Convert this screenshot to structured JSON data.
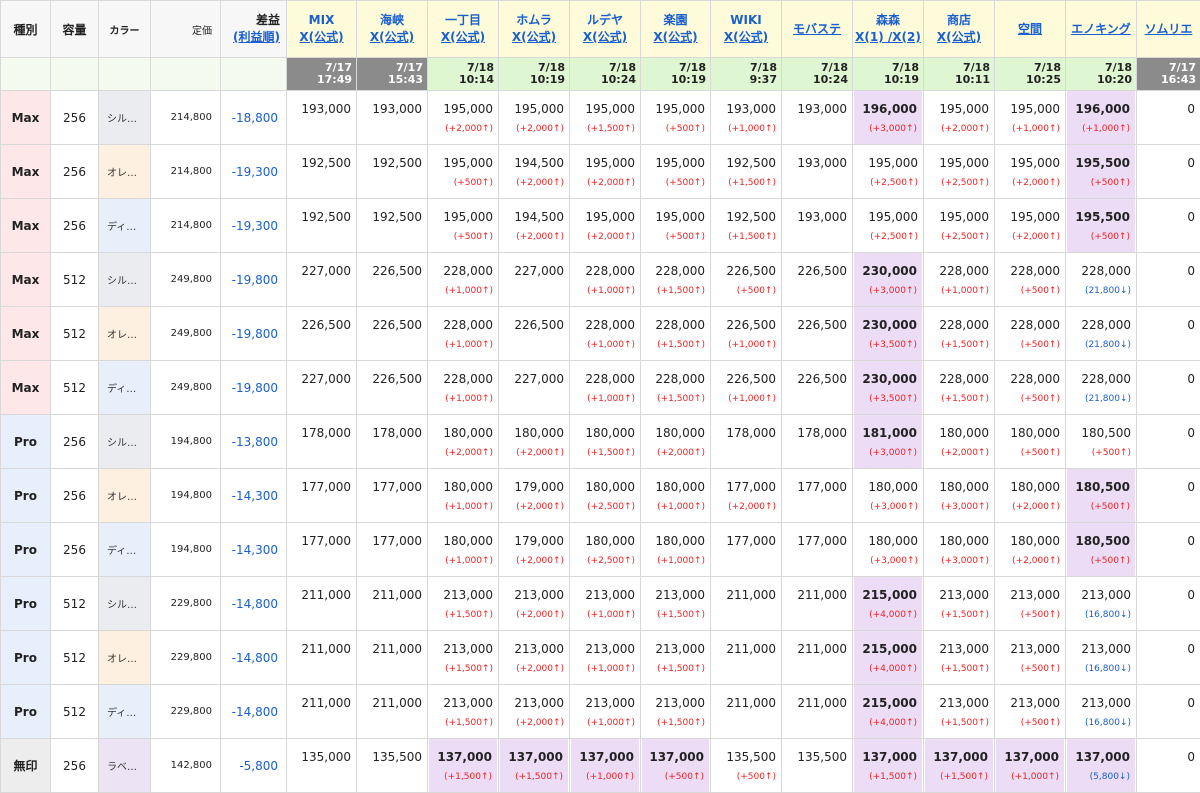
{
  "headers": {
    "type": "種別",
    "capacity": "容量",
    "color": "カラー",
    "price": "定価",
    "diff_line1": "差益",
    "diff_line2": "(利益順)"
  },
  "sites": [
    {
      "line1": "MIX",
      "line2": "X(公式)",
      "date": "7/17",
      "time": "17:49",
      "state": "old"
    },
    {
      "line1": "海峡",
      "line2": "X(公式)",
      "date": "7/17",
      "time": "15:43",
      "state": "old"
    },
    {
      "line1": "一丁目",
      "line2": "X(公式)",
      "date": "7/18",
      "time": "10:14",
      "state": "new"
    },
    {
      "line1": "ホムラ",
      "line2": "X(公式)",
      "date": "7/18",
      "time": "10:19",
      "state": "new"
    },
    {
      "line1": "ルデヤ",
      "line2": "X(公式)",
      "date": "7/18",
      "time": "10:24",
      "state": "new"
    },
    {
      "line1": "楽園",
      "line2": "X(公式)",
      "date": "7/18",
      "time": "10:19",
      "state": "new"
    },
    {
      "line1": "WIKI",
      "line2": "X(公式)",
      "date": "7/18",
      "time": "9:37",
      "state": "new"
    },
    {
      "line1": "モバステ",
      "line2": "",
      "date": "7/18",
      "time": "10:24",
      "state": "new"
    },
    {
      "line1": "森森",
      "line2": "X(1) /X(2)",
      "date": "7/18",
      "time": "10:19",
      "state": "new"
    },
    {
      "line1": "商店",
      "line2": "X(公式)",
      "date": "7/18",
      "time": "10:11",
      "state": "new"
    },
    {
      "line1": "空間",
      "line2": "",
      "date": "7/18",
      "time": "10:25",
      "state": "new"
    },
    {
      "line1": "エノキング",
      "line2": "",
      "date": "7/18",
      "time": "10:20",
      "state": "new"
    },
    {
      "line1": "ソムリエ",
      "line2": "",
      "date": "7/17",
      "time": "16:43",
      "state": "old"
    }
  ],
  "rows": [
    {
      "type": "Max",
      "cap": "256",
      "color": "シル…",
      "colorKind": "silver",
      "price": "214,800",
      "diff": "-18,800",
      "cells": [
        {
          "v": "193,000",
          "d": ""
        },
        {
          "v": "193,000",
          "d": ""
        },
        {
          "v": "195,000",
          "d": "(+2,000↑)"
        },
        {
          "v": "195,000",
          "d": "(+2,000↑)"
        },
        {
          "v": "195,000",
          "d": "(+1,500↑)"
        },
        {
          "v": "195,000",
          "d": "(+500↑)"
        },
        {
          "v": "193,000",
          "d": "(+1,000↑)"
        },
        {
          "v": "193,000",
          "d": ""
        },
        {
          "v": "196,000",
          "d": "(+3,000↑)",
          "hl": true
        },
        {
          "v": "195,000",
          "d": "(+2,000↑)"
        },
        {
          "v": "195,000",
          "d": "(+1,000↑)"
        },
        {
          "v": "196,000",
          "d": "(+1,000↑)",
          "hl": true
        },
        {
          "v": "0",
          "d": ""
        }
      ]
    },
    {
      "type": "Max",
      "cap": "256",
      "color": "オレ…",
      "colorKind": "orange",
      "price": "214,800",
      "diff": "-19,300",
      "cells": [
        {
          "v": "192,500",
          "d": ""
        },
        {
          "v": "192,500",
          "d": ""
        },
        {
          "v": "195,000",
          "d": "(+500↑)"
        },
        {
          "v": "194,500",
          "d": "(+2,000↑)"
        },
        {
          "v": "195,000",
          "d": "(+2,000↑)"
        },
        {
          "v": "195,000",
          "d": "(+500↑)"
        },
        {
          "v": "192,500",
          "d": "(+1,500↑)"
        },
        {
          "v": "193,000",
          "d": ""
        },
        {
          "v": "195,000",
          "d": "(+2,500↑)"
        },
        {
          "v": "195,000",
          "d": "(+2,500↑)"
        },
        {
          "v": "195,000",
          "d": "(+2,000↑)"
        },
        {
          "v": "195,500",
          "d": "(+500↑)",
          "hl": true
        },
        {
          "v": "0",
          "d": ""
        }
      ]
    },
    {
      "type": "Max",
      "cap": "256",
      "color": "ディ…",
      "colorKind": "blue",
      "price": "214,800",
      "diff": "-19,300",
      "cells": [
        {
          "v": "192,500",
          "d": ""
        },
        {
          "v": "192,500",
          "d": ""
        },
        {
          "v": "195,000",
          "d": "(+500↑)"
        },
        {
          "v": "194,500",
          "d": "(+2,000↑)"
        },
        {
          "v": "195,000",
          "d": "(+2,000↑)"
        },
        {
          "v": "195,000",
          "d": "(+500↑)"
        },
        {
          "v": "192,500",
          "d": "(+1,500↑)"
        },
        {
          "v": "193,000",
          "d": ""
        },
        {
          "v": "195,000",
          "d": "(+2,500↑)"
        },
        {
          "v": "195,000",
          "d": "(+2,500↑)"
        },
        {
          "v": "195,000",
          "d": "(+2,000↑)"
        },
        {
          "v": "195,500",
          "d": "(+500↑)",
          "hl": true
        },
        {
          "v": "0",
          "d": ""
        }
      ]
    },
    {
      "type": "Max",
      "cap": "512",
      "color": "シル…",
      "colorKind": "silver",
      "price": "249,800",
      "diff": "-19,800",
      "cells": [
        {
          "v": "227,000",
          "d": ""
        },
        {
          "v": "226,500",
          "d": ""
        },
        {
          "v": "228,000",
          "d": "(+1,000↑)"
        },
        {
          "v": "227,000",
          "d": ""
        },
        {
          "v": "228,000",
          "d": "(+1,000↑)"
        },
        {
          "v": "228,000",
          "d": "(+1,500↑)"
        },
        {
          "v": "226,500",
          "d": "(+500↑)"
        },
        {
          "v": "226,500",
          "d": ""
        },
        {
          "v": "230,000",
          "d": "(+3,000↑)",
          "hl": true
        },
        {
          "v": "228,000",
          "d": "(+1,000↑)"
        },
        {
          "v": "228,000",
          "d": "(+500↑)"
        },
        {
          "v": "228,000",
          "d": "(21,800↓)",
          "down": true
        },
        {
          "v": "0",
          "d": ""
        }
      ]
    },
    {
      "type": "Max",
      "cap": "512",
      "color": "オレ…",
      "colorKind": "orange",
      "price": "249,800",
      "diff": "-19,800",
      "cells": [
        {
          "v": "226,500",
          "d": ""
        },
        {
          "v": "226,500",
          "d": ""
        },
        {
          "v": "228,000",
          "d": "(+1,000↑)"
        },
        {
          "v": "226,500",
          "d": ""
        },
        {
          "v": "228,000",
          "d": "(+1,000↑)"
        },
        {
          "v": "228,000",
          "d": "(+1,500↑)"
        },
        {
          "v": "226,500",
          "d": "(+1,000↑)"
        },
        {
          "v": "226,500",
          "d": ""
        },
        {
          "v": "230,000",
          "d": "(+3,500↑)",
          "hl": true
        },
        {
          "v": "228,000",
          "d": "(+1,500↑)"
        },
        {
          "v": "228,000",
          "d": "(+500↑)"
        },
        {
          "v": "228,000",
          "d": "(21,800↓)",
          "down": true
        },
        {
          "v": "0",
          "d": ""
        }
      ]
    },
    {
      "type": "Max",
      "cap": "512",
      "color": "ディ…",
      "colorKind": "blue",
      "price": "249,800",
      "diff": "-19,800",
      "cells": [
        {
          "v": "227,000",
          "d": ""
        },
        {
          "v": "226,500",
          "d": ""
        },
        {
          "v": "228,000",
          "d": "(+1,000↑)"
        },
        {
          "v": "227,000",
          "d": ""
        },
        {
          "v": "228,000",
          "d": "(+1,000↑)"
        },
        {
          "v": "228,000",
          "d": "(+1,500↑)"
        },
        {
          "v": "226,500",
          "d": "(+1,000↑)"
        },
        {
          "v": "226,500",
          "d": ""
        },
        {
          "v": "230,000",
          "d": "(+3,500↑)",
          "hl": true
        },
        {
          "v": "228,000",
          "d": "(+1,500↑)"
        },
        {
          "v": "228,000",
          "d": "(+500↑)"
        },
        {
          "v": "228,000",
          "d": "(21,800↓)",
          "down": true
        },
        {
          "v": "0",
          "d": ""
        }
      ]
    },
    {
      "type": "Pro",
      "cap": "256",
      "color": "シル…",
      "colorKind": "silver",
      "price": "194,800",
      "diff": "-13,800",
      "cells": [
        {
          "v": "178,000",
          "d": ""
        },
        {
          "v": "178,000",
          "d": ""
        },
        {
          "v": "180,000",
          "d": "(+2,000↑)"
        },
        {
          "v": "180,000",
          "d": "(+2,000↑)"
        },
        {
          "v": "180,000",
          "d": "(+1,500↑)"
        },
        {
          "v": "180,000",
          "d": "(+2,000↑)"
        },
        {
          "v": "178,000",
          "d": ""
        },
        {
          "v": "178,000",
          "d": ""
        },
        {
          "v": "181,000",
          "d": "(+3,000↑)",
          "hl": true
        },
        {
          "v": "180,000",
          "d": "(+2,000↑)"
        },
        {
          "v": "180,000",
          "d": "(+500↑)"
        },
        {
          "v": "180,500",
          "d": "(+500↑)"
        },
        {
          "v": "0",
          "d": ""
        }
      ]
    },
    {
      "type": "Pro",
      "cap": "256",
      "color": "オレ…",
      "colorKind": "orange",
      "price": "194,800",
      "diff": "-14,300",
      "cells": [
        {
          "v": "177,000",
          "d": ""
        },
        {
          "v": "177,000",
          "d": ""
        },
        {
          "v": "180,000",
          "d": "(+1,000↑)"
        },
        {
          "v": "179,000",
          "d": "(+2,000↑)"
        },
        {
          "v": "180,000",
          "d": "(+2,500↑)"
        },
        {
          "v": "180,000",
          "d": "(+1,000↑)"
        },
        {
          "v": "177,000",
          "d": "(+2,000↑)"
        },
        {
          "v": "177,000",
          "d": ""
        },
        {
          "v": "180,000",
          "d": "(+3,000↑)"
        },
        {
          "v": "180,000",
          "d": "(+3,000↑)"
        },
        {
          "v": "180,000",
          "d": "(+2,000↑)"
        },
        {
          "v": "180,500",
          "d": "(+500↑)",
          "hl": true
        },
        {
          "v": "0",
          "d": ""
        }
      ]
    },
    {
      "type": "Pro",
      "cap": "256",
      "color": "ディ…",
      "colorKind": "blue",
      "price": "194,800",
      "diff": "-14,300",
      "cells": [
        {
          "v": "177,000",
          "d": ""
        },
        {
          "v": "177,000",
          "d": ""
        },
        {
          "v": "180,000",
          "d": "(+1,000↑)"
        },
        {
          "v": "179,000",
          "d": "(+2,000↑)"
        },
        {
          "v": "180,000",
          "d": "(+2,500↑)"
        },
        {
          "v": "180,000",
          "d": "(+1,000↑)"
        },
        {
          "v": "177,000",
          "d": ""
        },
        {
          "v": "177,000",
          "d": ""
        },
        {
          "v": "180,000",
          "d": "(+3,000↑)"
        },
        {
          "v": "180,000",
          "d": "(+3,000↑)"
        },
        {
          "v": "180,000",
          "d": "(+2,000↑)"
        },
        {
          "v": "180,500",
          "d": "(+500↑)",
          "hl": true
        },
        {
          "v": "0",
          "d": ""
        }
      ]
    },
    {
      "type": "Pro",
      "cap": "512",
      "color": "シル…",
      "colorKind": "silver",
      "price": "229,800",
      "diff": "-14,800",
      "cells": [
        {
          "v": "211,000",
          "d": ""
        },
        {
          "v": "211,000",
          "d": ""
        },
        {
          "v": "213,000",
          "d": "(+1,500↑)"
        },
        {
          "v": "213,000",
          "d": "(+2,000↑)"
        },
        {
          "v": "213,000",
          "d": "(+1,000↑)"
        },
        {
          "v": "213,000",
          "d": "(+1,500↑)"
        },
        {
          "v": "211,000",
          "d": ""
        },
        {
          "v": "211,000",
          "d": ""
        },
        {
          "v": "215,000",
          "d": "(+4,000↑)",
          "hl": true
        },
        {
          "v": "213,000",
          "d": "(+1,500↑)"
        },
        {
          "v": "213,000",
          "d": "(+500↑)"
        },
        {
          "v": "213,000",
          "d": "(16,800↓)",
          "down": true
        },
        {
          "v": "0",
          "d": ""
        }
      ]
    },
    {
      "type": "Pro",
      "cap": "512",
      "color": "オレ…",
      "colorKind": "orange",
      "price": "229,800",
      "diff": "-14,800",
      "cells": [
        {
          "v": "211,000",
          "d": ""
        },
        {
          "v": "211,000",
          "d": ""
        },
        {
          "v": "213,000",
          "d": "(+1,500↑)"
        },
        {
          "v": "213,000",
          "d": "(+2,000↑)"
        },
        {
          "v": "213,000",
          "d": "(+1,000↑)"
        },
        {
          "v": "213,000",
          "d": "(+1,500↑)"
        },
        {
          "v": "211,000",
          "d": ""
        },
        {
          "v": "211,000",
          "d": ""
        },
        {
          "v": "215,000",
          "d": "(+4,000↑)",
          "hl": true
        },
        {
          "v": "213,000",
          "d": "(+1,500↑)"
        },
        {
          "v": "213,000",
          "d": "(+500↑)"
        },
        {
          "v": "213,000",
          "d": "(16,800↓)",
          "down": true
        },
        {
          "v": "0",
          "d": ""
        }
      ]
    },
    {
      "type": "Pro",
      "cap": "512",
      "color": "ディ…",
      "colorKind": "blue",
      "price": "229,800",
      "diff": "-14,800",
      "cells": [
        {
          "v": "211,000",
          "d": ""
        },
        {
          "v": "211,000",
          "d": ""
        },
        {
          "v": "213,000",
          "d": "(+1,500↑)"
        },
        {
          "v": "213,000",
          "d": "(+2,000↑)"
        },
        {
          "v": "213,000",
          "d": "(+1,000↑)"
        },
        {
          "v": "213,000",
          "d": "(+1,500↑)"
        },
        {
          "v": "211,000",
          "d": ""
        },
        {
          "v": "211,000",
          "d": ""
        },
        {
          "v": "215,000",
          "d": "(+4,000↑)",
          "hl": true
        },
        {
          "v": "213,000",
          "d": "(+1,500↑)"
        },
        {
          "v": "213,000",
          "d": "(+500↑)"
        },
        {
          "v": "213,000",
          "d": "(16,800↓)",
          "down": true
        },
        {
          "v": "0",
          "d": ""
        }
      ]
    },
    {
      "type": "無印",
      "cap": "256",
      "color": "ラベ…",
      "colorKind": "lav",
      "price": "142,800",
      "diff": "-5,800",
      "cells": [
        {
          "v": "135,000",
          "d": ""
        },
        {
          "v": "135,500",
          "d": ""
        },
        {
          "v": "137,000",
          "d": "(+1,500↑)",
          "hl": true
        },
        {
          "v": "137,000",
          "d": "(+1,500↑)",
          "hl": true
        },
        {
          "v": "137,000",
          "d": "(+1,000↑)",
          "hl": true
        },
        {
          "v": "137,000",
          "d": "(+500↑)",
          "hl": true
        },
        {
          "v": "135,500",
          "d": "(+500↑)"
        },
        {
          "v": "135,500",
          "d": ""
        },
        {
          "v": "137,000",
          "d": "(+1,500↑)",
          "hl": true
        },
        {
          "v": "137,000",
          "d": "(+1,500↑)",
          "hl": true
        },
        {
          "v": "137,000",
          "d": "(+1,000↑)",
          "hl": true
        },
        {
          "v": "137,000",
          "d": "(5,800↓)",
          "down": true,
          "hl": true
        },
        {
          "v": "0",
          "d": ""
        }
      ]
    }
  ],
  "colors": {
    "highlight": "#ecdcf6",
    "up": "#ee2222",
    "down": "#1a5fd0",
    "link": "#1a5fd0"
  }
}
